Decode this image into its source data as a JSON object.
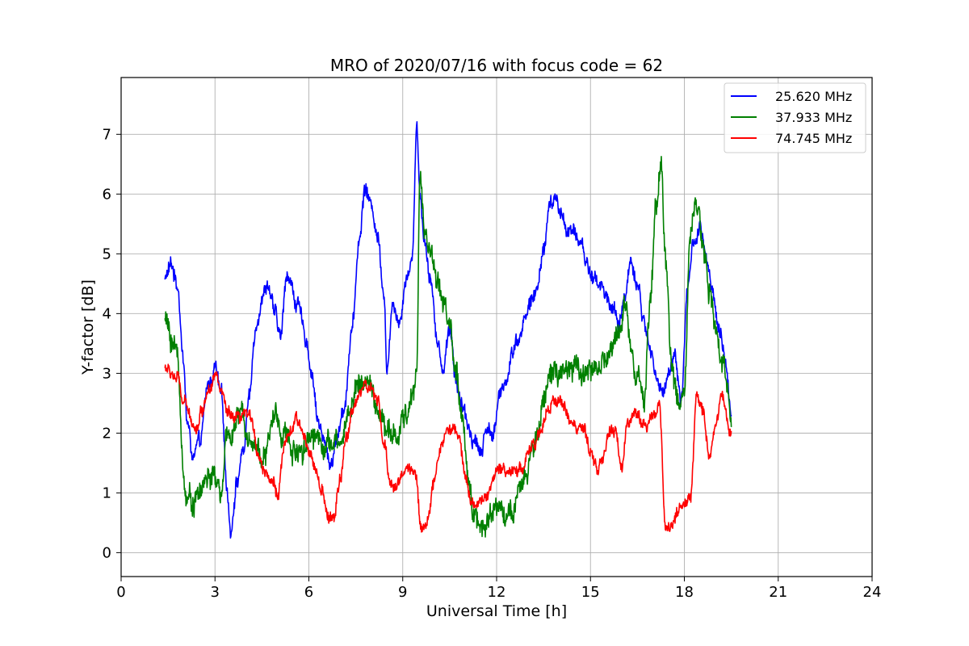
{
  "chart_data": {
    "type": "line",
    "title": "MRO of 2020/07/16 with focus code = 62",
    "xlabel": "Universal Time [h]",
    "ylabel": "Y-factor [dB]",
    "xlim": [
      0,
      24
    ],
    "ylim": [
      -0.4,
      7.95
    ],
    "xticks": [
      0,
      3,
      6,
      9,
      12,
      15,
      18,
      21,
      24
    ],
    "yticks": [
      0,
      1,
      2,
      3,
      4,
      5,
      6,
      7
    ],
    "grid": true,
    "legend_position": "top-right",
    "series": [
      {
        "name": "25.620 MHz",
        "color": "#0000ff",
        "noise": 0.18,
        "x": [
          1.4,
          1.6,
          1.8,
          2.0,
          2.1,
          2.3,
          2.5,
          2.8,
          3.0,
          3.2,
          3.4,
          3.5,
          3.7,
          3.9,
          4.1,
          4.3,
          4.5,
          4.7,
          4.9,
          5.1,
          5.3,
          5.6,
          5.9,
          6.1,
          6.3,
          6.5,
          6.7,
          6.9,
          7.1,
          7.4,
          7.6,
          7.8,
          8.0,
          8.2,
          8.4,
          8.5,
          8.7,
          8.9,
          9.1,
          9.3,
          9.45,
          9.55,
          9.7,
          9.9,
          10.1,
          10.3,
          10.5,
          10.7,
          10.9,
          11.1,
          11.3,
          11.5,
          11.7,
          11.9,
          12.1,
          12.3,
          12.5,
          12.7,
          12.9,
          13.1,
          13.3,
          13.5,
          13.7,
          13.9,
          14.1,
          14.3,
          14.5,
          14.7,
          14.9,
          15.1,
          15.3,
          15.5,
          15.7,
          15.9,
          16.1,
          16.3,
          16.5,
          16.7,
          16.9,
          17.1,
          17.3,
          17.5,
          17.7,
          17.9,
          18.1,
          18.3,
          18.5,
          18.7,
          18.9,
          19.1,
          19.3,
          19.5
        ],
        "y": [
          4.6,
          4.8,
          4.5,
          3.2,
          2.2,
          1.6,
          1.8,
          2.8,
          3.1,
          2.6,
          1.0,
          0.4,
          1.2,
          1.7,
          2.6,
          3.8,
          4.3,
          4.5,
          4.0,
          3.6,
          4.7,
          4.2,
          3.6,
          3.0,
          2.2,
          1.8,
          1.5,
          1.9,
          2.4,
          3.8,
          5.2,
          6.1,
          5.8,
          5.3,
          4.4,
          3.1,
          4.2,
          3.9,
          4.6,
          4.9,
          7.2,
          6.0,
          5.2,
          4.6,
          3.5,
          3.1,
          3.8,
          2.9,
          2.4,
          2.1,
          1.9,
          1.7,
          2.1,
          2.0,
          2.6,
          2.9,
          3.4,
          3.6,
          3.9,
          4.2,
          4.4,
          5.1,
          5.8,
          5.9,
          5.6,
          5.4,
          5.3,
          5.2,
          4.8,
          4.6,
          4.5,
          4.3,
          4.1,
          3.8,
          4.3,
          4.9,
          4.5,
          3.9,
          3.4,
          3.0,
          2.6,
          3.1,
          3.3,
          2.6,
          4.4,
          5.2,
          5.4,
          4.9,
          4.3,
          3.7,
          3.2,
          2.4
        ]
      },
      {
        "name": "37.933 MHz",
        "color": "#008000",
        "noise": 0.28,
        "x": [
          1.4,
          1.6,
          1.8,
          2.0,
          2.1,
          2.3,
          2.5,
          2.8,
          3.0,
          3.2,
          3.4,
          3.6,
          3.8,
          4.0,
          4.3,
          4.6,
          4.9,
          5.2,
          5.5,
          5.8,
          6.1,
          6.4,
          6.7,
          7.0,
          7.3,
          7.6,
          7.9,
          8.2,
          8.5,
          8.8,
          9.1,
          9.3,
          9.45,
          9.55,
          9.7,
          9.9,
          10.1,
          10.3,
          10.5,
          10.7,
          10.9,
          11.1,
          11.3,
          11.5,
          11.7,
          11.9,
          12.1,
          12.3,
          12.5,
          12.7,
          12.9,
          13.1,
          13.3,
          13.5,
          13.7,
          13.9,
          14.1,
          14.3,
          14.5,
          14.7,
          14.9,
          15.1,
          15.3,
          15.5,
          15.7,
          15.9,
          16.1,
          16.3,
          16.5,
          16.7,
          16.9,
          17.1,
          17.25,
          17.4,
          17.6,
          17.8,
          18.0,
          18.2,
          18.4,
          18.6,
          18.8,
          19.0,
          19.2,
          19.5
        ],
        "y": [
          3.9,
          3.6,
          3.3,
          1.3,
          0.9,
          0.9,
          1.0,
          1.3,
          1.2,
          1.0,
          1.9,
          2.1,
          2.3,
          2.1,
          1.8,
          1.6,
          2.3,
          2.0,
          1.7,
          1.8,
          2.0,
          1.9,
          1.8,
          1.8,
          2.4,
          2.9,
          2.8,
          2.4,
          2.0,
          1.9,
          2.3,
          2.6,
          3.0,
          6.4,
          5.4,
          5.0,
          4.6,
          4.2,
          3.8,
          3.0,
          2.1,
          1.2,
          0.7,
          0.4,
          0.6,
          0.7,
          0.8,
          0.7,
          0.6,
          0.9,
          1.2,
          1.6,
          2.0,
          2.6,
          3.0,
          3.0,
          2.9,
          3.0,
          3.1,
          3.0,
          3.1,
          3.1,
          3.1,
          3.2,
          3.4,
          3.8,
          4.1,
          3.5,
          3.1,
          2.5,
          4.2,
          5.7,
          6.6,
          5.0,
          3.0,
          2.5,
          2.7,
          5.5,
          6.0,
          5.1,
          4.3,
          3.7,
          3.1,
          2.5
        ]
      },
      {
        "name": "74.745 MHz",
        "color": "#ff0000",
        "noise": 0.15,
        "x": [
          1.4,
          1.6,
          1.8,
          2.0,
          2.2,
          2.4,
          2.6,
          2.8,
          3.0,
          3.2,
          3.4,
          3.6,
          3.8,
          4.0,
          4.2,
          4.4,
          4.6,
          4.8,
          5.0,
          5.2,
          5.4,
          5.6,
          5.8,
          6.0,
          6.2,
          6.4,
          6.6,
          6.8,
          7.0,
          7.2,
          7.4,
          7.6,
          7.8,
          8.0,
          8.2,
          8.4,
          8.6,
          8.8,
          9.0,
          9.2,
          9.4,
          9.6,
          9.8,
          10.0,
          10.2,
          10.4,
          10.6,
          10.8,
          11.0,
          11.2,
          11.4,
          11.6,
          11.8,
          12.0,
          12.2,
          12.4,
          12.6,
          12.8,
          13.0,
          13.2,
          13.4,
          13.6,
          13.8,
          14.0,
          14.2,
          14.4,
          14.6,
          14.8,
          15.0,
          15.2,
          15.4,
          15.6,
          15.8,
          16.0,
          16.2,
          16.4,
          16.6,
          16.8,
          17.0,
          17.2,
          17.4,
          17.6,
          17.8,
          18.0,
          18.2,
          18.4,
          18.6,
          18.8,
          19.0,
          19.2,
          19.5
        ],
        "y": [
          3.1,
          3.0,
          2.9,
          2.5,
          2.3,
          2.1,
          2.4,
          2.8,
          3.0,
          2.7,
          2.3,
          2.2,
          2.2,
          2.3,
          2.2,
          1.6,
          1.4,
          1.2,
          1.0,
          1.7,
          2.0,
          2.2,
          2.0,
          1.8,
          1.4,
          1.0,
          0.6,
          0.6,
          1.2,
          1.9,
          2.4,
          2.7,
          2.8,
          2.7,
          2.5,
          1.8,
          1.2,
          1.1,
          1.3,
          1.5,
          1.3,
          0.4,
          0.6,
          1.1,
          1.8,
          2.0,
          2.1,
          1.9,
          1.3,
          0.9,
          0.8,
          0.9,
          1.1,
          1.3,
          1.4,
          1.4,
          1.4,
          1.4,
          1.7,
          1.8,
          2.0,
          2.3,
          2.5,
          2.6,
          2.4,
          2.2,
          2.1,
          2.0,
          1.6,
          1.4,
          1.6,
          2.0,
          2.0,
          1.4,
          2.2,
          2.4,
          2.2,
          2.1,
          2.3,
          2.5,
          0.4,
          0.5,
          0.7,
          0.8,
          0.9,
          2.6,
          2.4,
          1.6,
          2.2,
          2.6,
          2.0
        ]
      }
    ]
  }
}
